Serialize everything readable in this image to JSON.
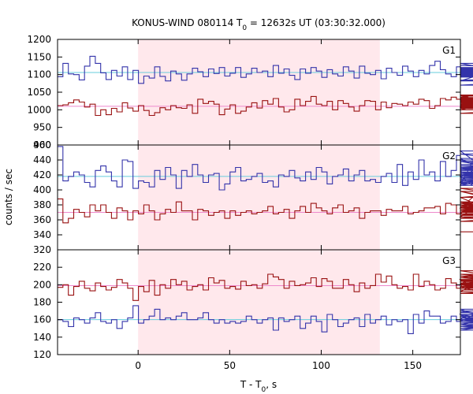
{
  "chart_data": {
    "type": "line",
    "title_main": "KONUS-WIND 080114 T",
    "title_sub": "0",
    "title_rest": " = 12632s UT (03:30:32.000)",
    "ylabel": "counts / sec",
    "xlabel_main": "T - T",
    "xlabel_sub": "0",
    "xlabel_rest": ", s",
    "xlim": [
      -44,
      176
    ],
    "x_ticks": [
      0,
      50,
      100,
      150
    ],
    "x_tick_labels": [
      "0",
      "50",
      "100",
      "150"
    ],
    "shaded_interval": [
      0,
      132
    ],
    "step_seconds": 2.944,
    "colors": {
      "series_blue": "#3333aa",
      "series_red": "#991111",
      "bg_blue": "#66ccdd",
      "bg_red": "#ee88cc",
      "shade": "#ffe8ec"
    },
    "panels": [
      {
        "name": "G1",
        "ylim": [
          900,
          1200
        ],
        "y_ticks": [
          900,
          950,
          1000,
          1050,
          1100,
          1150,
          1200
        ],
        "y_tick_labels": [
          "900",
          "950",
          "1000",
          "1050",
          "1100",
          "1150",
          "1200"
        ],
        "series": [
          {
            "color": "series_blue",
            "background": 1106,
            "values": [
              1094,
              1132,
              1102,
              1100,
              1085,
              1124,
              1152,
              1132,
              1105,
              1086,
              1112,
              1096,
              1122,
              1086,
              1112,
              1075,
              1096,
              1090,
              1122,
              1095,
              1082,
              1110,
              1102,
              1084,
              1102,
              1118,
              1108,
              1094,
              1116,
              1103,
              1120,
              1096,
              1104,
              1120,
              1092,
              1102,
              1118,
              1106,
              1110,
              1094,
              1126,
              1104,
              1116,
              1098,
              1086,
              1116,
              1104,
              1120,
              1110,
              1092,
              1114,
              1102,
              1096,
              1122,
              1110,
              1090,
              1124,
              1104,
              1100,
              1112,
              1088,
              1118,
              1106,
              1098,
              1124,
              1110,
              1094,
              1112,
              1102,
              1126,
              1138,
              1114,
              1102,
              1094,
              1122,
              1104,
              1110,
              1098,
              1118,
              1104,
              1082,
              1112,
              1100,
              1132,
              1106,
              1116,
              1118,
              1098,
              1106,
              1110,
              1094,
              1120,
              1102,
              1114,
              1108,
              1096,
              1104,
              1112,
              1108,
              1102,
              1126,
              1116,
              1070,
              1094,
              1118,
              1112,
              1084,
              1100,
              1112,
              1100,
              1093,
              1116,
              1098,
              1108,
              1102,
              1082,
              1108,
              1116,
              1104,
              1100,
              1097,
              1108,
              1104,
              1106,
              1102
            ]
          },
          {
            "color": "series_red",
            "background": 1010,
            "values": [
              1012,
              1014,
              1020,
              1028,
              1022,
              1008,
              1016,
              984,
              1000,
              986,
              1004,
              994,
              1020,
              1005,
              996,
              1012,
              998,
              984,
              992,
              1006,
              1000,
              1012,
              1006,
              1004,
              1014,
              990,
              1030,
              1018,
              1024,
              1016,
              986,
              1002,
              1014,
              990,
              996,
              1008,
              1020,
              1005,
              1026,
              1016,
              1032,
              1008,
              994,
              1000,
              1030,
              1012,
              1024,
              1038,
              1016,
              1012,
              1024,
              1000,
              1026,
              1018,
              1008,
              996,
              1012,
              1026,
              1024,
              1000,
              1022,
              1006,
              1018,
              1016,
              1012,
              1022,
              1016,
              1030,
              1026,
              1004,
              1012,
              1032,
              1028,
              1036,
              1030,
              1008,
              1036,
              1040,
              1028,
              1000,
              1020,
              1016,
              1024,
              1004,
              1008,
              1030,
              1026,
              1010,
              1014,
              1034,
              1040,
              1032,
              1010,
              1022,
              1006,
              1014,
              1012,
              1016,
              1020,
              1000,
              1006,
              1018,
              1012,
              1020,
              1020,
              1010,
              1022,
              1010,
              990,
              1018,
              1004,
              1016,
              1012,
              1004,
              1018,
              1010,
              1020,
              1042,
              1006,
              1032,
              1000,
              1018,
              1005,
              1000,
              1012
            ]
          }
        ]
      },
      {
        "name": "G2",
        "ylim": [
          320,
          460
        ],
        "y_ticks": [
          320,
          340,
          360,
          380,
          400,
          420,
          440,
          460
        ],
        "y_tick_labels": [
          "320",
          "340",
          "360",
          "380",
          "400",
          "420",
          "440",
          "460"
        ],
        "series": [
          {
            "color": "series_blue",
            "background": 418,
            "values": [
              458,
              412,
              418,
              424,
              420,
              410,
              404,
              426,
              432,
              424,
              412,
              404,
              440,
              438,
              402,
              412,
              410,
              404,
              426,
              414,
              430,
              420,
              402,
              426,
              418,
              434,
              420,
              410,
              420,
              422,
              400,
              408,
              424,
              430,
              412,
              414,
              418,
              422,
              410,
              412,
              404,
              420,
              418,
              426,
              416,
              412,
              424,
              414,
              430,
              424,
              408,
              418,
              420,
              428,
              412,
              420,
              426,
              412,
              414,
              410,
              418,
              422,
              410,
              434,
              406,
              424,
              414,
              440,
              420,
              424,
              412,
              438,
              418,
              426,
              446,
              410,
              418,
              406,
              452,
              430,
              420,
              418,
              442,
              412,
              412,
              408,
              424,
              408,
              438,
              420,
              406,
              428,
              440,
              412,
              420,
              434,
              432,
              422,
              428,
              414,
              416,
              426,
              448,
              420,
              416,
              408,
              418,
              424,
              422,
              408,
              418,
              408,
              412,
              420,
              416,
              410,
              430,
              408,
              416,
              420,
              412,
              410,
              424,
              416,
              418
            ]
          },
          {
            "color": "series_red",
            "background": 370,
            "values": [
              388,
              356,
              362,
              374,
              370,
              364,
              380,
              372,
              380,
              370,
              362,
              376,
              372,
              360,
              372,
              368,
              380,
              372,
              360,
              368,
              374,
              370,
              384,
              372,
              372,
              360,
              374,
              372,
              366,
              370,
              372,
              362,
              372,
              366,
              370,
              372,
              368,
              370,
              372,
              378,
              368,
              370,
              374,
              362,
              372,
              378,
              370,
              382,
              376,
              372,
              368,
              376,
              380,
              370,
              372,
              376,
              362,
              370,
              372,
              372,
              366,
              374,
              372,
              372,
              378,
              368,
              370,
              372,
              376,
              376,
              378,
              368,
              382,
              380,
              368,
              368,
              376,
              390,
              380,
              372,
              368,
              364,
              398,
              384,
              370,
              384,
              376,
              380,
              362,
              376,
              398,
              376,
              362,
              366,
              380,
              372,
              390,
              402,
              380,
              374,
              368,
              362,
              372,
              376,
              370,
              378,
              366,
              366,
              370,
              368,
              362,
              372,
              358,
              366,
              372,
              358,
              362,
              368,
              376,
              362,
              368,
              374,
              358,
              382,
              344
            ]
          }
        ]
      },
      {
        "name": "G3",
        "ylim": [
          120,
          240
        ],
        "y_ticks": [
          120,
          140,
          160,
          180,
          200,
          220
        ],
        "y_tick_labels": [
          "120",
          "140",
          "160",
          "180",
          "200",
          "220"
        ],
        "series": [
          {
            "color": "series_red",
            "background": 199,
            "values": [
              197,
              200,
              188,
              198,
              204,
              196,
              193,
              202,
              198,
              194,
              197,
              206,
              202,
              196,
              182,
              198,
              192,
              205,
              188,
              200,
              196,
              206,
              200,
              204,
              194,
              198,
              200,
              194,
              208,
              202,
              205,
              196,
              198,
              195,
              204,
              199,
              200,
              196,
              201,
              212,
              209,
              206,
              196,
              204,
              199,
              200,
              202,
              208,
              198,
              207,
              204,
              196,
              196,
              206,
              200,
              192,
              202,
              196,
              199,
              212,
              203,
              210,
              200,
              196,
              198,
              194,
              212,
              198,
              204,
              200,
              194,
              196,
              207,
              202,
              196,
              200,
              206,
              198,
              192,
              206,
              200,
              198,
              200,
              194,
              196,
              204,
              210,
              194,
              196,
              208,
              204,
              212,
              201,
              216,
              198,
              208,
              202,
              208,
              198,
              196,
              204,
              200,
              206,
              196,
              204,
              198,
              198,
              210,
              196,
              205,
              200,
              202,
              194,
              205,
              190,
              205,
              208,
              200,
              198,
              206,
              200,
              196,
              200,
              210,
              198,
              212,
              205
            ]
          },
          {
            "color": "series_blue",
            "background": 160,
            "values": [
              160,
              158,
              152,
              162,
              160,
              156,
              162,
              168,
              158,
              156,
              160,
              150,
              158,
              162,
              176,
              156,
              160,
              164,
              172,
              160,
              162,
              160,
              164,
              168,
              160,
              160,
              162,
              168,
              160,
              156,
              160,
              156,
              158,
              156,
              158,
              164,
              160,
              156,
              160,
              162,
              148,
              162,
              158,
              160,
              164,
              150,
              156,
              164,
              158,
              146,
              166,
              160,
              152,
              156,
              160,
              162,
              152,
              166,
              156,
              160,
              164,
              154,
              160,
              158,
              160,
              144,
              166,
              156,
              170,
              164,
              164,
              156,
              158,
              164,
              158,
              160,
              166,
              158,
              168,
              172,
              160,
              164,
              150,
              156,
              160,
              166,
              154,
              170,
              152,
              162,
              160,
              164,
              160,
              148,
              164,
              160,
              158,
              156,
              162,
              160,
              152,
              158,
              164,
              162,
              166,
              162,
              160,
              156,
              160,
              154,
              162,
              160,
              150,
              162,
              158,
              164,
              160,
              166,
              158,
              160,
              162,
              164,
              152,
              162,
              160,
              164,
              152
            ]
          }
        ]
      }
    ]
  }
}
